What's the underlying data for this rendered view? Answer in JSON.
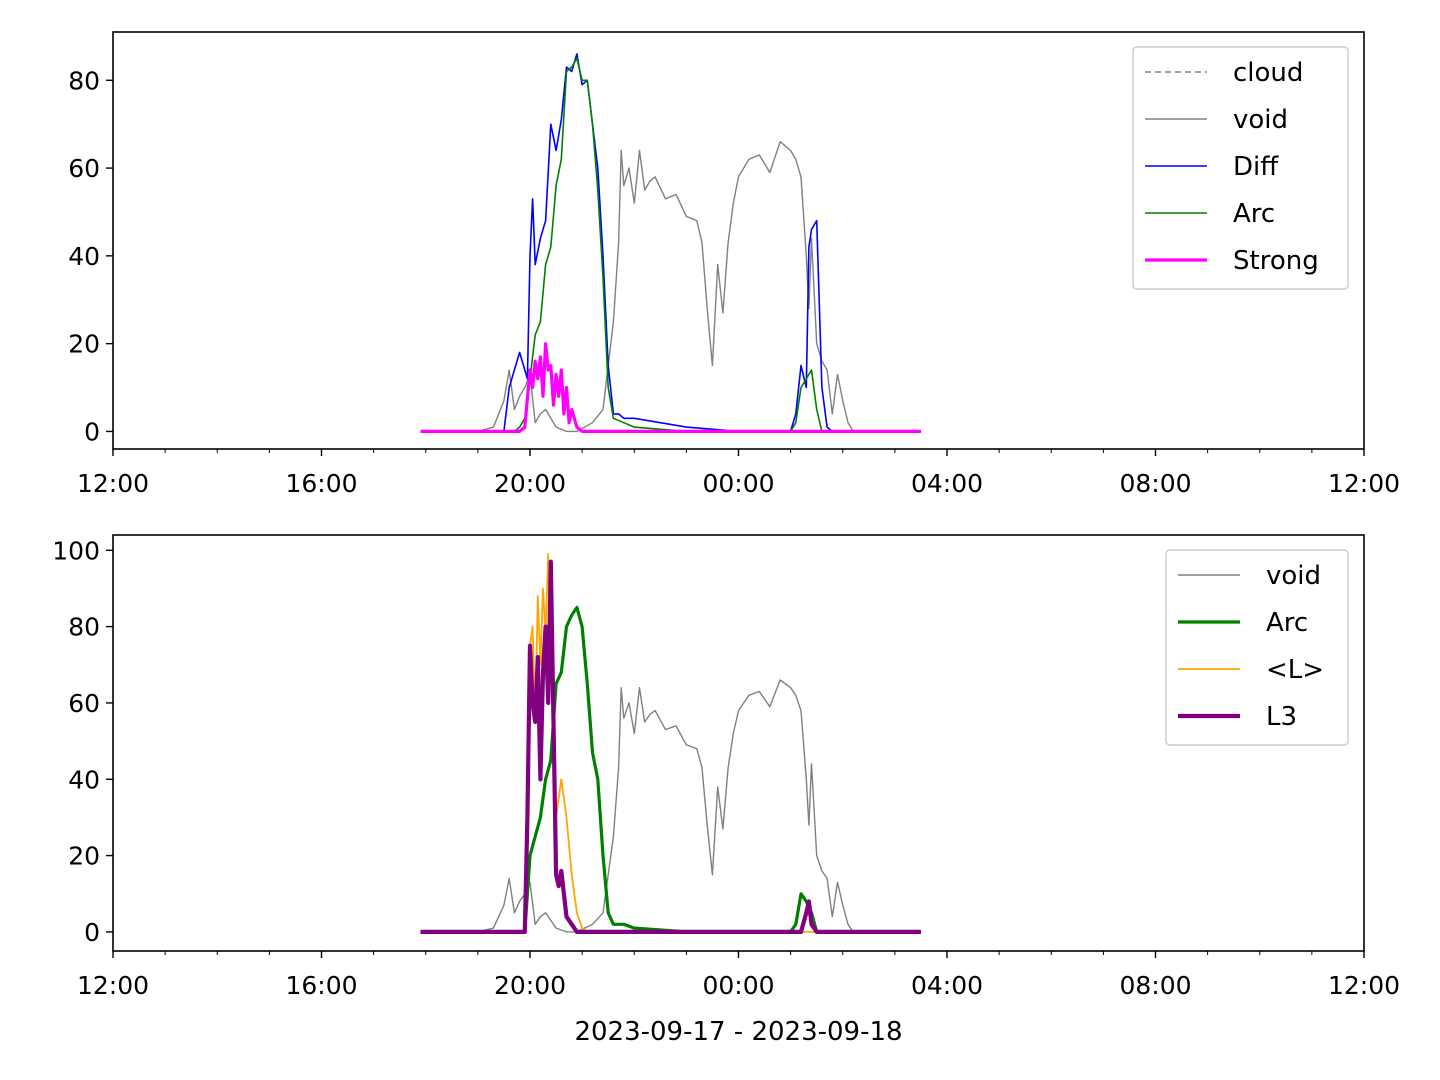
{
  "chart_data": [
    {
      "type": "line",
      "xlim": [
        "12:00",
        "12:00"
      ],
      "ylim": [
        -4,
        91
      ],
      "xticks": [
        "12:00",
        "16:00",
        "20:00",
        "00:00",
        "04:00",
        "08:00",
        "12:00"
      ],
      "yticks": [
        "0",
        "20",
        "40",
        "60",
        "80"
      ],
      "legend": "top-right",
      "xlabel": "",
      "ylabel": "",
      "series": [
        {
          "name": "cloud",
          "color": "#808080",
          "style": "dashed",
          "x": [],
          "y": []
        },
        {
          "name": "void",
          "color": "#808080",
          "style": "solid",
          "x": [
            17.9,
            19.0,
            19.3,
            19.5,
            19.6,
            19.7,
            19.8,
            19.9,
            20.0,
            20.1,
            20.2,
            20.3,
            20.5,
            20.7,
            20.9,
            21.2,
            21.4,
            21.5,
            21.6,
            21.7,
            21.75,
            21.8,
            21.9,
            22.0,
            22.1,
            22.2,
            22.3,
            22.4,
            22.6,
            22.8,
            23.0,
            23.2,
            23.3,
            23.4,
            23.5,
            23.6,
            23.7,
            23.8,
            23.9,
            24.0,
            24.2,
            24.4,
            24.6,
            24.8,
            25.0,
            25.1,
            25.2,
            25.3,
            25.35,
            25.4,
            25.5,
            25.6,
            25.7,
            25.8,
            25.9,
            26.0,
            26.1,
            26.2,
            27.5
          ],
          "y": [
            0,
            0,
            1,
            7,
            14,
            5,
            8,
            10,
            13,
            2,
            4,
            5,
            1,
            0,
            0,
            2,
            5,
            15,
            25,
            43,
            64,
            56,
            60,
            52,
            64,
            55,
            57,
            58,
            53,
            54,
            49,
            48,
            43,
            28,
            15,
            38,
            27,
            43,
            52,
            58,
            62,
            63,
            59,
            66,
            64,
            62,
            58,
            40,
            28,
            44,
            20,
            16,
            14,
            4,
            13,
            7,
            2,
            0,
            0
          ]
        },
        {
          "name": "Diff",
          "color": "#0000ff",
          "style": "solid",
          "x": [
            17.9,
            19.5,
            19.6,
            19.8,
            19.95,
            20.0,
            20.05,
            20.1,
            20.2,
            20.3,
            20.4,
            20.5,
            20.6,
            20.7,
            20.8,
            20.9,
            21.0,
            21.1,
            21.2,
            21.3,
            21.4,
            21.5,
            21.6,
            21.7,
            21.8,
            22.0,
            23.0,
            24.0,
            25.0,
            25.1,
            25.2,
            25.3,
            25.35,
            25.4,
            25.5,
            25.6,
            25.7,
            25.8,
            27.5
          ],
          "y": [
            0,
            0,
            10,
            18,
            12,
            40,
            53,
            38,
            44,
            48,
            70,
            64,
            71,
            83,
            82,
            86,
            79,
            80,
            70,
            60,
            40,
            15,
            4,
            4,
            3,
            3,
            1,
            0,
            0,
            4,
            15,
            10,
            42,
            46,
            48,
            10,
            1,
            0,
            0
          ]
        },
        {
          "name": "Arc",
          "color": "#008000",
          "style": "solid",
          "x": [
            17.9,
            19.7,
            19.8,
            19.9,
            20.0,
            20.1,
            20.2,
            20.3,
            20.4,
            20.5,
            20.6,
            20.7,
            20.8,
            20.9,
            21.0,
            21.1,
            21.2,
            21.3,
            21.4,
            21.5,
            21.6,
            21.8,
            22.0,
            23.0,
            24.0,
            25.0,
            25.1,
            25.2,
            25.3,
            25.4,
            25.5,
            25.6,
            27.5
          ],
          "y": [
            0,
            0,
            1,
            3,
            12,
            22,
            25,
            38,
            42,
            56,
            62,
            82,
            83,
            85,
            80,
            80,
            70,
            55,
            35,
            10,
            3,
            2,
            1,
            0,
            0,
            0,
            2,
            10,
            12,
            14,
            5,
            0,
            0
          ]
        },
        {
          "name": "Strong",
          "color": "#ff00ff",
          "style": "solid",
          "x": [
            17.9,
            19.8,
            19.9,
            20.0,
            20.05,
            20.1,
            20.15,
            20.2,
            20.25,
            20.3,
            20.35,
            20.4,
            20.45,
            20.5,
            20.55,
            20.6,
            20.65,
            20.7,
            20.75,
            20.8,
            20.9,
            21.0,
            27.5
          ],
          "y": [
            0,
            0,
            1,
            14,
            10,
            16,
            12,
            17,
            8,
            20,
            14,
            15,
            6,
            13,
            8,
            14,
            4,
            10,
            2,
            5,
            1,
            0,
            0
          ]
        }
      ]
    },
    {
      "type": "line",
      "xlim": [
        "12:00",
        "12:00"
      ],
      "ylim": [
        -5,
        104
      ],
      "xticks": [
        "12:00",
        "16:00",
        "20:00",
        "00:00",
        "04:00",
        "08:00",
        "12:00"
      ],
      "yticks": [
        "0",
        "20",
        "40",
        "60",
        "80",
        "100"
      ],
      "legend": "top-right",
      "xlabel": "2023-09-17 - 2023-09-18",
      "ylabel": "",
      "series": [
        {
          "name": "void",
          "color": "#808080",
          "style": "solid",
          "x": [
            17.9,
            19.0,
            19.3,
            19.5,
            19.6,
            19.7,
            19.8,
            19.9,
            20.0,
            20.1,
            20.2,
            20.3,
            20.5,
            20.7,
            20.9,
            21.2,
            21.4,
            21.5,
            21.6,
            21.7,
            21.75,
            21.8,
            21.9,
            22.0,
            22.1,
            22.2,
            22.3,
            22.4,
            22.6,
            22.8,
            23.0,
            23.2,
            23.3,
            23.4,
            23.5,
            23.6,
            23.7,
            23.8,
            23.9,
            24.0,
            24.2,
            24.4,
            24.6,
            24.8,
            25.0,
            25.1,
            25.2,
            25.3,
            25.35,
            25.4,
            25.5,
            25.6,
            25.7,
            25.8,
            25.9,
            26.0,
            26.1,
            26.2,
            27.5
          ],
          "y": [
            0,
            0,
            1,
            7,
            14,
            5,
            8,
            10,
            13,
            2,
            4,
            5,
            1,
            0,
            0,
            2,
            5,
            15,
            25,
            43,
            64,
            56,
            60,
            52,
            64,
            55,
            57,
            58,
            53,
            54,
            49,
            48,
            43,
            28,
            15,
            38,
            27,
            43,
            52,
            58,
            62,
            63,
            59,
            66,
            64,
            62,
            58,
            40,
            28,
            44,
            20,
            16,
            14,
            4,
            13,
            7,
            2,
            0,
            0
          ]
        },
        {
          "name": "Arc",
          "color": "#008000",
          "style": "solid",
          "x": [
            17.9,
            19.9,
            20.0,
            20.1,
            20.2,
            20.3,
            20.4,
            20.5,
            20.6,
            20.7,
            20.8,
            20.9,
            21.0,
            21.1,
            21.2,
            21.3,
            21.4,
            21.5,
            21.6,
            21.8,
            22.0,
            23.0,
            24.0,
            25.0,
            25.1,
            25.2,
            25.3,
            25.4,
            25.5,
            27.5
          ],
          "y": [
            0,
            0,
            20,
            25,
            30,
            40,
            45,
            65,
            68,
            80,
            83,
            85,
            80,
            65,
            47,
            40,
            20,
            5,
            2,
            2,
            1,
            0,
            0,
            0,
            2,
            10,
            8,
            5,
            0,
            0
          ]
        },
        {
          "name": "<L>",
          "color": "#ffa500",
          "style": "solid",
          "x": [
            17.9,
            19.9,
            20.0,
            20.05,
            20.1,
            20.15,
            20.2,
            20.25,
            20.3,
            20.35,
            20.4,
            20.45,
            20.5,
            20.6,
            20.7,
            20.8,
            20.9,
            21.0,
            21.1,
            27.5
          ],
          "y": [
            0,
            0,
            75,
            80,
            55,
            88,
            70,
            90,
            78,
            99,
            75,
            50,
            30,
            40,
            30,
            15,
            5,
            1,
            0,
            0
          ]
        },
        {
          "name": "L3",
          "color": "#800080",
          "style": "solid",
          "x": [
            17.9,
            19.9,
            19.95,
            20.0,
            20.05,
            20.1,
            20.15,
            20.2,
            20.25,
            20.3,
            20.35,
            20.4,
            20.45,
            20.5,
            20.55,
            20.6,
            20.7,
            20.8,
            20.9,
            25.2,
            25.3,
            25.35,
            25.4,
            25.5,
            27.5
          ],
          "y": [
            0,
            0,
            30,
            75,
            60,
            55,
            72,
            40,
            68,
            80,
            60,
            97,
            55,
            15,
            12,
            16,
            4,
            2,
            0,
            0,
            5,
            8,
            2,
            0,
            0
          ]
        }
      ]
    }
  ]
}
